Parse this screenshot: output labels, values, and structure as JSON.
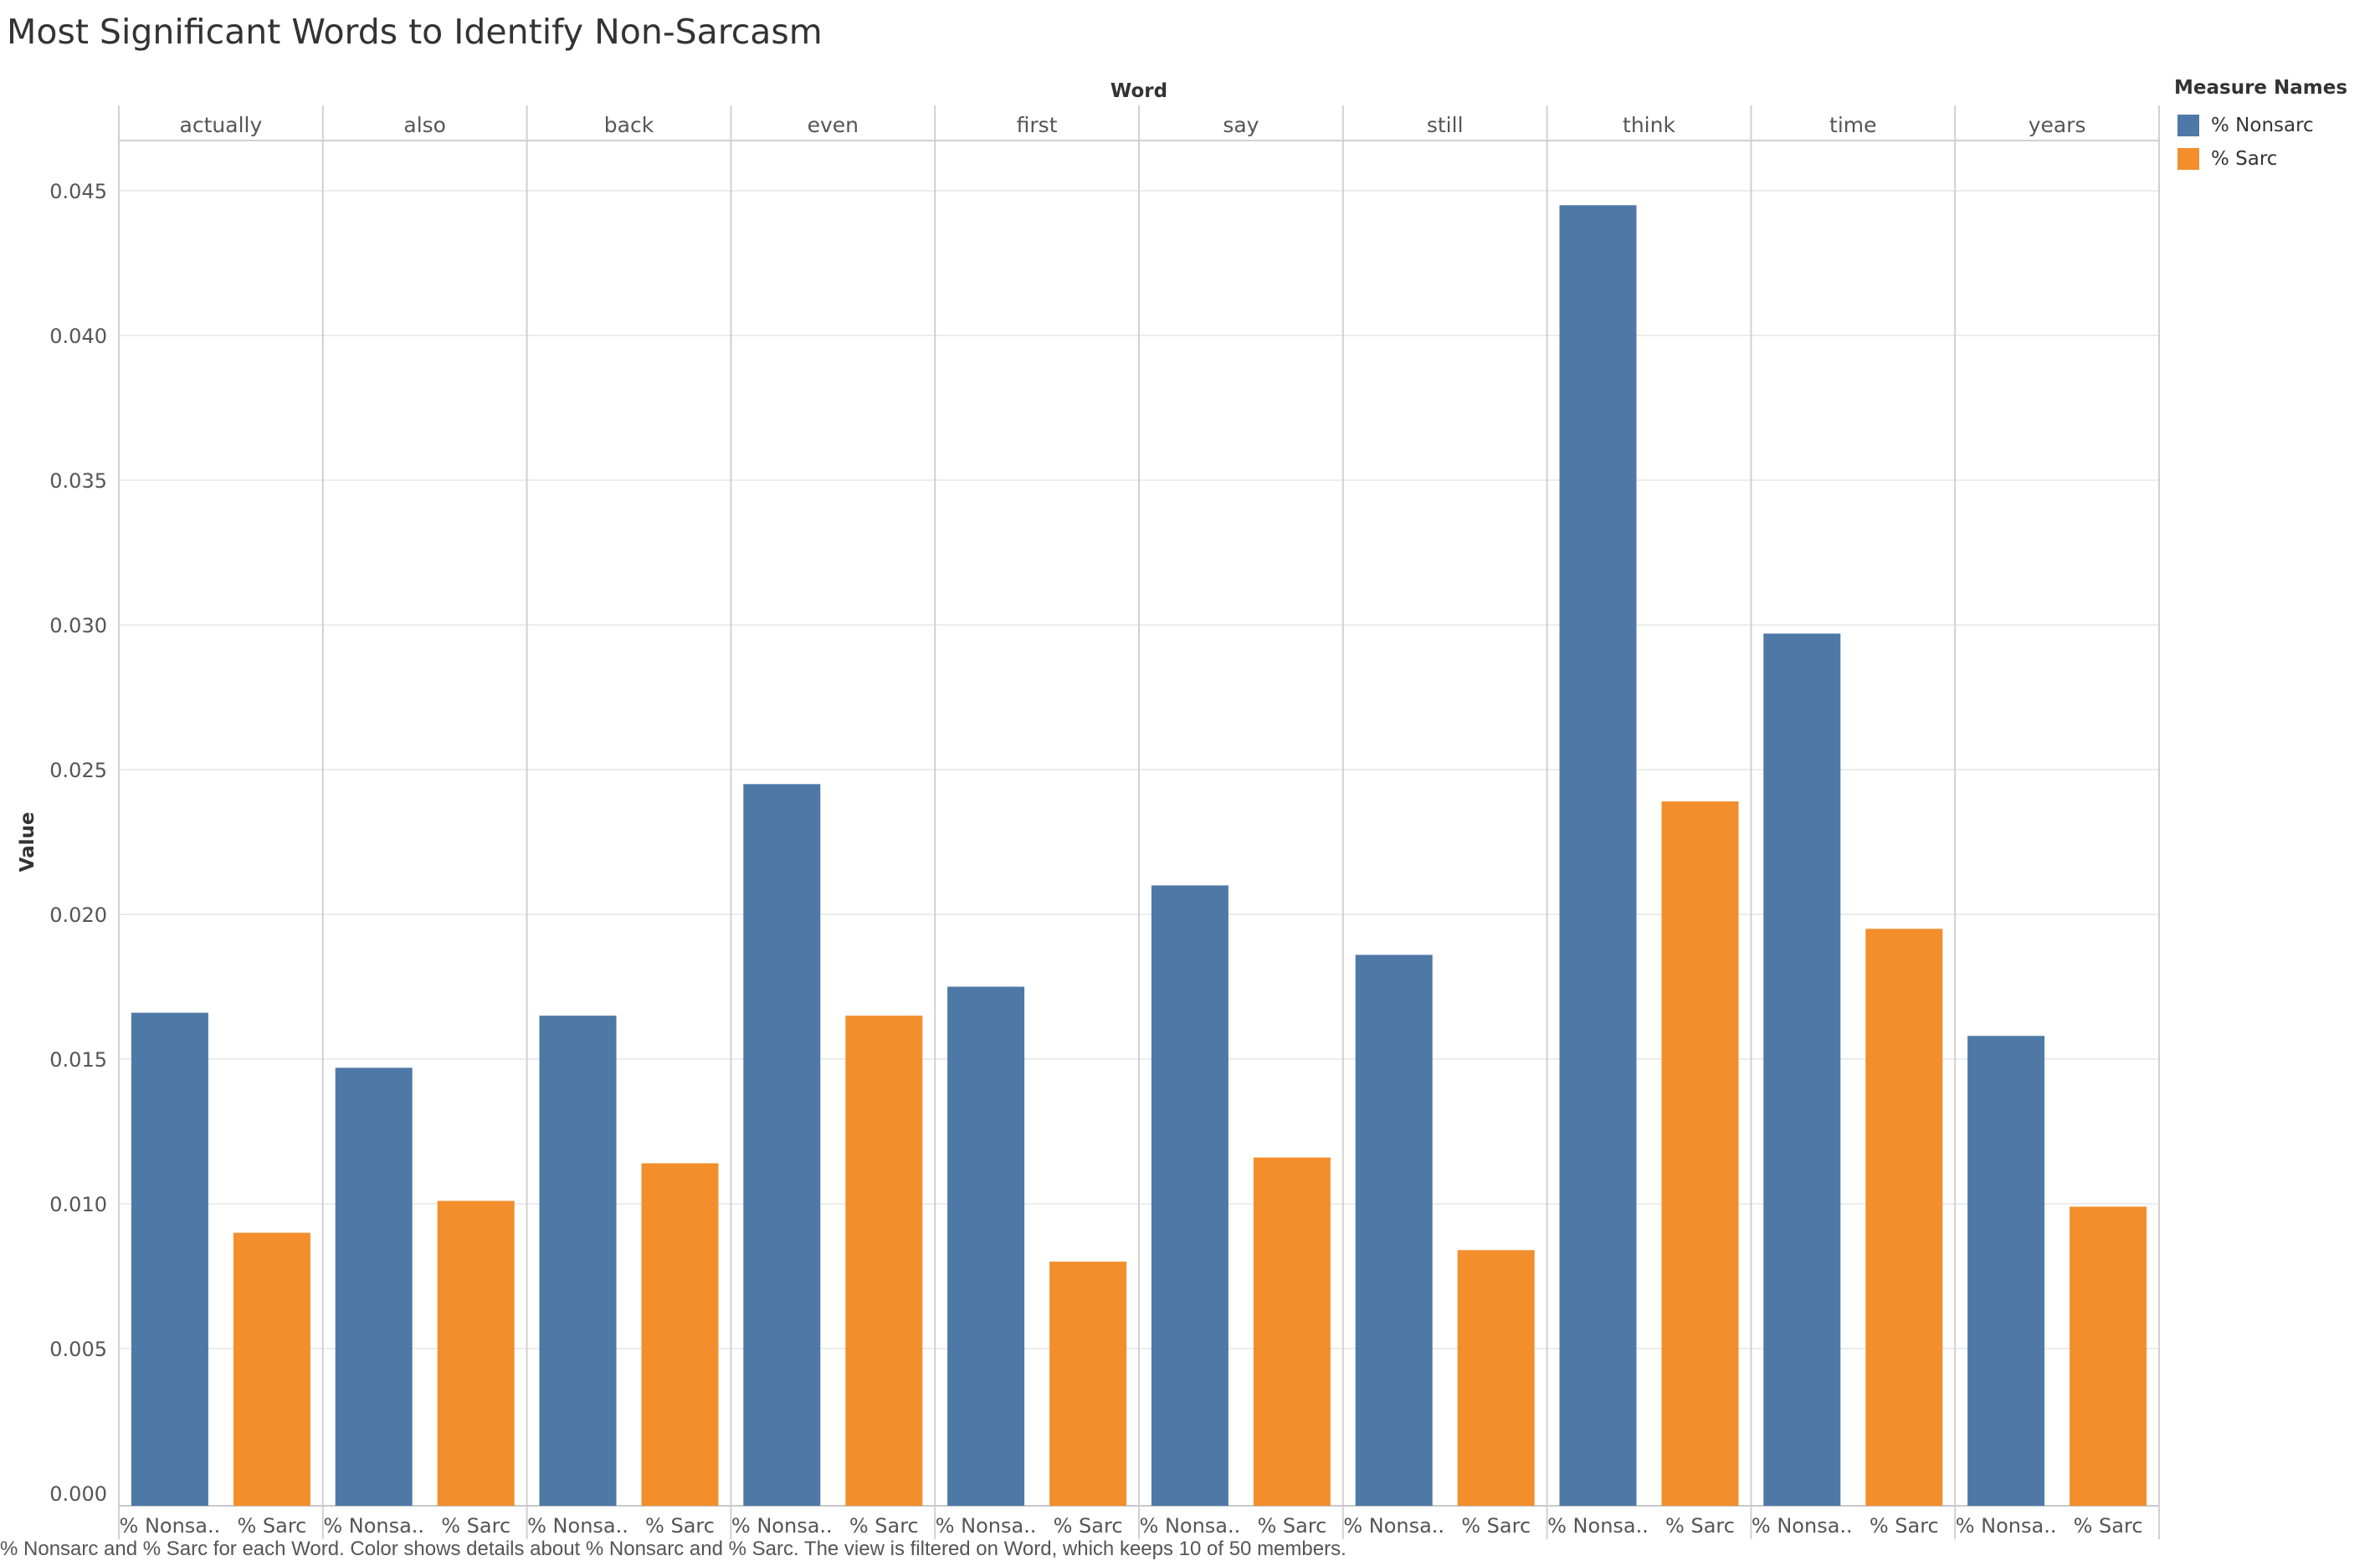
{
  "title": "Most Significant Words to Identify Non-Sarcasm",
  "caption": "% Nonsarc and % Sarc for each Word.  Color shows details about % Nonsarc and % Sarc. The view is filtered on Word, which keeps 10 of 50 members.",
  "legend": {
    "title": "Measure Names",
    "items": [
      {
        "label": "% Nonsarc",
        "color": "#4e79a7"
      },
      {
        "label": "% Sarc",
        "color": "#f28e2b"
      }
    ]
  },
  "chart_data": {
    "type": "bar",
    "column_header": "Word",
    "ylabel": "Value",
    "ylim": [
      0,
      0.045
    ],
    "yticks": [
      "0.000",
      "0.005",
      "0.010",
      "0.015",
      "0.020",
      "0.025",
      "0.030",
      "0.035",
      "0.040",
      "0.045"
    ],
    "grid": true,
    "legend_position": "top-right",
    "bar_tick_labels": [
      "% Nonsa..",
      "% Sarc"
    ],
    "categories": [
      "actually",
      "also",
      "back",
      "even",
      "first",
      "say",
      "still",
      "think",
      "time",
      "years"
    ],
    "series": [
      {
        "name": "% Nonsarc",
        "color": "#4e79a7",
        "values": [
          0.0166,
          0.0147,
          0.0165,
          0.0245,
          0.0175,
          0.021,
          0.0186,
          0.0445,
          0.0297,
          0.0158
        ]
      },
      {
        "name": "% Sarc",
        "color": "#f28e2b",
        "values": [
          0.009,
          0.0101,
          0.0114,
          0.0165,
          0.008,
          0.0116,
          0.0084,
          0.0239,
          0.0195,
          0.0099
        ]
      }
    ]
  }
}
